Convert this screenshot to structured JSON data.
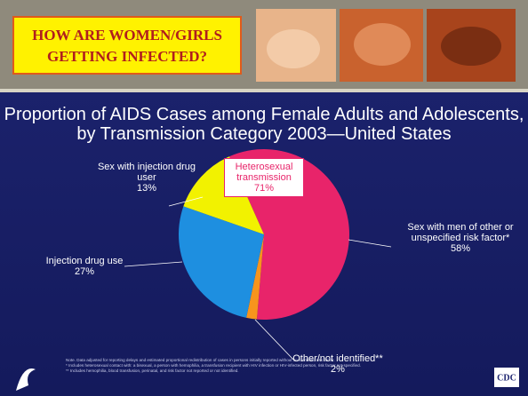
{
  "header": {
    "title": "HOW ARE WOMEN/GIRLS GETTING INFECTED?"
  },
  "chart_data": {
    "type": "pie",
    "title": "Proportion of AIDS Cases among Female Adults and Adolescents, by Transmission Category 2003—United States",
    "categories": [
      "Sex with men of other or unspecified risk factor*",
      "Other/not identified**",
      "Injection drug use",
      "Sex with injection drug user"
    ],
    "values": [
      58,
      2,
      27,
      13
    ],
    "value_labels": [
      "58%",
      "2%",
      "27%",
      "13%"
    ],
    "colors": [
      "#e8246a",
      "#f7941d",
      "#1e8fe0",
      "#f2f200"
    ],
    "annotation": {
      "text": "Heterosexual transmission",
      "value_label": "71%"
    }
  },
  "footnotes": [
    "Note. Data adjusted for reporting delays and estimated proportional redistribution of cases in persons initially reported without an identified risk factor.",
    "* Includes heterosexual contact with: a bisexual, a person with hemophilia, a transfusion recipient with HIV infection or HIV-infected person, risk factor not specified.",
    "** Includes hemophilia, blood transfusion, perinatal, and risk factor not reported or not identified."
  ],
  "logo": "CDC"
}
